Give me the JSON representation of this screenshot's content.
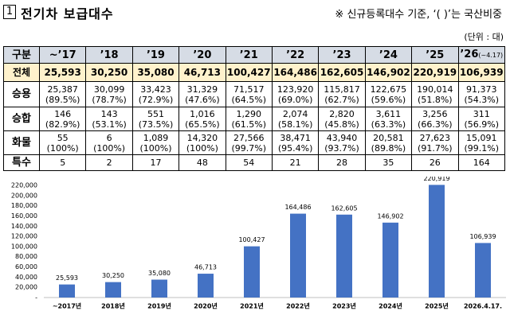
{
  "header": {
    "number": "1",
    "title": "전기차 보급대수",
    "note": "※ 신규등록대수 기준, ‘( )’는 국산비중",
    "unit": "(단위 : 대)"
  },
  "table": {
    "corner": "구분",
    "columns": [
      [
        "~’17"
      ],
      [
        "’18"
      ],
      [
        "’19"
      ],
      [
        "’20"
      ],
      [
        "’21"
      ],
      [
        "’22"
      ],
      [
        "’23"
      ],
      [
        "’24"
      ],
      [
        "’25"
      ],
      [
        "’26",
        "(~4.17)"
      ]
    ],
    "rows": [
      {
        "label": "전체",
        "cells": [
          [
            "25,593"
          ],
          [
            "30,250"
          ],
          [
            "35,080"
          ],
          [
            "46,713"
          ],
          [
            "100,427"
          ],
          [
            "164,486"
          ],
          [
            "162,605"
          ],
          [
            "146,902"
          ],
          [
            "220,919"
          ],
          [
            "106,939"
          ]
        ]
      },
      {
        "label": "승용",
        "cells": [
          [
            "25,387",
            "(89.5%)"
          ],
          [
            "30,099",
            "(78.7%)"
          ],
          [
            "33,423",
            "(72.9%)"
          ],
          [
            "31,329",
            "(47.6%)"
          ],
          [
            "71,517",
            "(64.5%)"
          ],
          [
            "123,920",
            "(69.0%)"
          ],
          [
            "115,817",
            "(62.7%)"
          ],
          [
            "122,675",
            "(59.6%)"
          ],
          [
            "190,014",
            "(51.8%)"
          ],
          [
            "91,373",
            "(54.3%)"
          ]
        ]
      },
      {
        "label": "승합",
        "cells": [
          [
            "146",
            "(82.9%)"
          ],
          [
            "143",
            "(53.1%)"
          ],
          [
            "551",
            "(73.5%)"
          ],
          [
            "1,016",
            "(65.5%)"
          ],
          [
            "1,290",
            "(61.5%)"
          ],
          [
            "2,074",
            "(58.1%)"
          ],
          [
            "2,820",
            "(45.8%)"
          ],
          [
            "3,611",
            "(63.3%)"
          ],
          [
            "3,256",
            "(66.3%)"
          ],
          [
            "311",
            "(56.9%)"
          ]
        ]
      },
      {
        "label": "화물",
        "cells": [
          [
            "55",
            "(100%)"
          ],
          [
            "6",
            "(100%)"
          ],
          [
            "1,089",
            "(100%)"
          ],
          [
            "14,320",
            "(100%)"
          ],
          [
            "27,566",
            "(99.7%)"
          ],
          [
            "38,471",
            "(95.4%)"
          ],
          [
            "43,940",
            "(93.7%)"
          ],
          [
            "20,581",
            "(89.8%)"
          ],
          [
            "27,623",
            "(91.7%)"
          ],
          [
            "15,091",
            "(99.1%)"
          ]
        ]
      },
      {
        "label": "특수",
        "cells": [
          [
            "5"
          ],
          [
            "2"
          ],
          [
            "17"
          ],
          [
            "48"
          ],
          [
            "54"
          ],
          [
            "21"
          ],
          [
            "28"
          ],
          [
            "35"
          ],
          [
            "26"
          ],
          [
            "164"
          ]
        ]
      }
    ]
  },
  "chart_data": {
    "type": "bar",
    "categories": [
      "~2017년",
      "2018년",
      "2019년",
      "2020년",
      "2021년",
      "2022년",
      "2023년",
      "2024년",
      "2025년",
      "2026.4.17."
    ],
    "values": [
      25593,
      30250,
      35080,
      46713,
      100427,
      164486,
      162605,
      146902,
      220919,
      106939
    ],
    "value_labels": [
      "25,593",
      "30,250",
      "35,080",
      "46,713",
      "100,427",
      "164,486",
      "162,605",
      "146,902",
      "220,919",
      "106,939"
    ],
    "color": "#4472c4",
    "ylim": [
      0,
      220000
    ],
    "yticks": [
      {
        "value": 0,
        "label": "-"
      },
      {
        "value": 20000,
        "label": "20,000"
      },
      {
        "value": 40000,
        "label": "40,000"
      },
      {
        "value": 60000,
        "label": "60,000"
      },
      {
        "value": 80000,
        "label": "80,000"
      },
      {
        "value": 100000,
        "label": "100,000"
      },
      {
        "value": 120000,
        "label": "120,000"
      },
      {
        "value": 140000,
        "label": "140,000"
      },
      {
        "value": 160000,
        "label": "160,000"
      },
      {
        "value": 180000,
        "label": "180,000"
      },
      {
        "value": 200000,
        "label": "200,000"
      },
      {
        "value": 220000,
        "label": "220,000"
      }
    ],
    "grid": false
  }
}
